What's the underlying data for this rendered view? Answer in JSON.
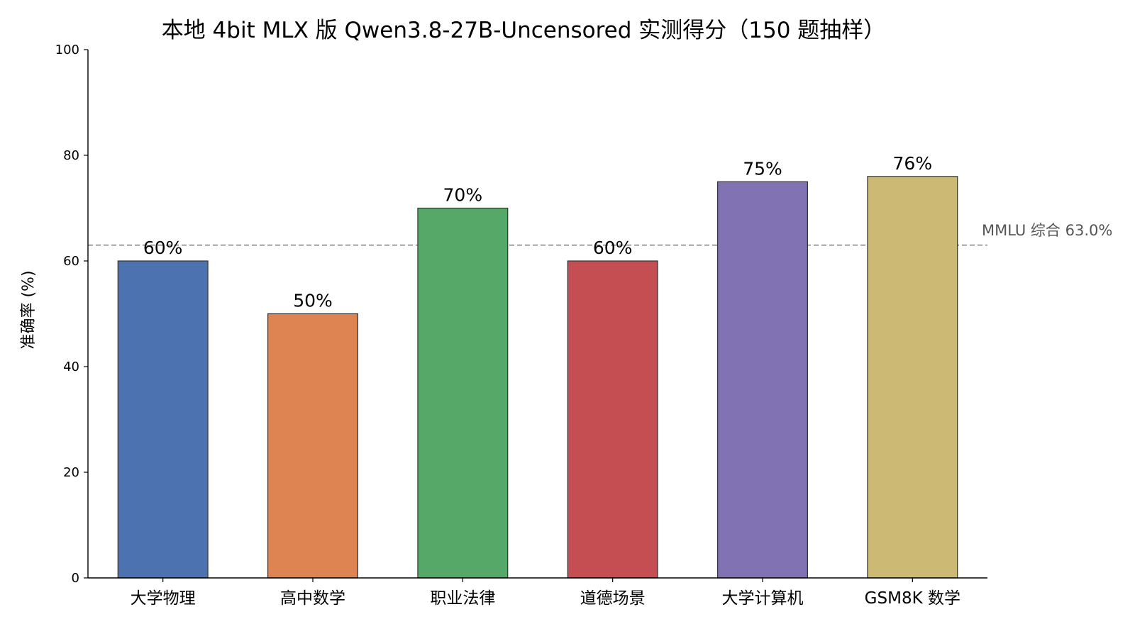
{
  "chart_data": {
    "type": "bar",
    "title": "本地 4bit MLX 版 Qwen3.8-27B-Uncensored 实测得分（150 题抽样）",
    "xlabel": "",
    "ylabel": "准确率 (%)",
    "ylim": [
      0,
      100
    ],
    "yticks": [
      "0",
      "20",
      "40",
      "60",
      "80",
      "100"
    ],
    "grid": false,
    "categories": [
      "大学物理",
      "高中数学",
      "职业法律",
      "道德场景",
      "大学计算机",
      "GSM8K 数学"
    ],
    "values": [
      60,
      50,
      70,
      60,
      75,
      76
    ],
    "value_labels": [
      "60%",
      "50%",
      "70%",
      "60%",
      "75%",
      "76%"
    ],
    "bar_colors": [
      "#4c72b0",
      "#dd8452",
      "#55a868",
      "#c44e52",
      "#8172b3",
      "#ccb974"
    ],
    "bar_edge_color": "#333333",
    "reference_line": {
      "value": 63.0,
      "label": "MMLU 综合 63.0%",
      "color": "#888888",
      "style": "dashed"
    }
  }
}
